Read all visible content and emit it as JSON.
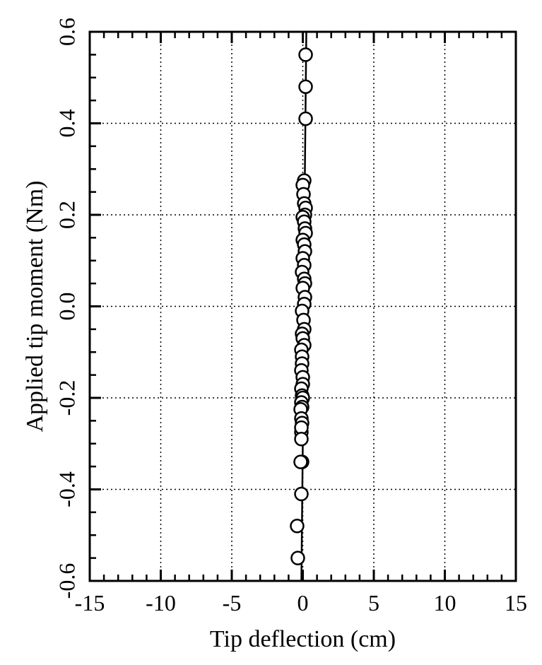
{
  "chart_data": {
    "type": "scatter",
    "title": "",
    "xlabel": "Tip deflection (cm)",
    "ylabel": "Applied tip moment (Nm)",
    "xlim": [
      -15,
      15
    ],
    "ylim": [
      -0.6,
      0.6
    ],
    "grid": true,
    "x_ticks": [
      "-15",
      "-10",
      "-5",
      "0",
      "5",
      "10",
      "15"
    ],
    "y_ticks": [
      "-0.6",
      "-0.4",
      "-0.2",
      "0.0",
      "0.2",
      "0.4",
      "0.6"
    ],
    "line": {
      "x": [
        -0.1,
        -0.05,
        0.0,
        0.05,
        0.1,
        0.15,
        0.2,
        0.25
      ],
      "y": [
        -0.6,
        -0.45,
        -0.3,
        -0.1,
        0.1,
        0.3,
        0.45,
        0.6
      ]
    },
    "series": [
      {
        "name": "measured",
        "marker": "open-circle",
        "x": [
          0.2,
          0.2,
          0.2,
          0.1,
          0.0,
          0.05,
          0.1,
          0.2,
          0.15,
          0.0,
          0.1,
          0.15,
          0.2,
          0.0,
          0.1,
          0.15,
          0.0,
          0.1,
          -0.05,
          0.1,
          0.15,
          0.0,
          0.15,
          0.1,
          -0.05,
          0.05,
          0.1,
          -0.05,
          0.0,
          0.1,
          -0.1,
          -0.05,
          -0.05,
          -0.1,
          0.0,
          0.0,
          -0.1,
          -0.05,
          0.0,
          -0.1,
          -0.05,
          -0.15,
          -0.1,
          -0.1,
          -0.05,
          -0.1,
          -0.05,
          -0.1,
          -0.1,
          -0.15,
          -0.4,
          -0.35
        ],
        "y": [
          0.55,
          0.48,
          0.41,
          0.275,
          0.265,
          0.245,
          0.225,
          0.215,
          0.2,
          0.195,
          0.185,
          0.17,
          0.16,
          0.145,
          0.135,
          0.12,
          0.105,
          0.09,
          0.075,
          0.06,
          0.05,
          0.04,
          0.02,
          0.005,
          -0.01,
          -0.03,
          -0.05,
          -0.06,
          -0.07,
          -0.085,
          -0.095,
          -0.11,
          -0.125,
          -0.14,
          -0.155,
          -0.17,
          -0.18,
          -0.195,
          -0.2,
          -0.21,
          -0.22,
          -0.225,
          -0.245,
          -0.275,
          -0.34,
          -0.41,
          -0.255,
          -0.265,
          -0.29,
          -0.34,
          -0.48,
          -0.55
        ]
      }
    ]
  }
}
